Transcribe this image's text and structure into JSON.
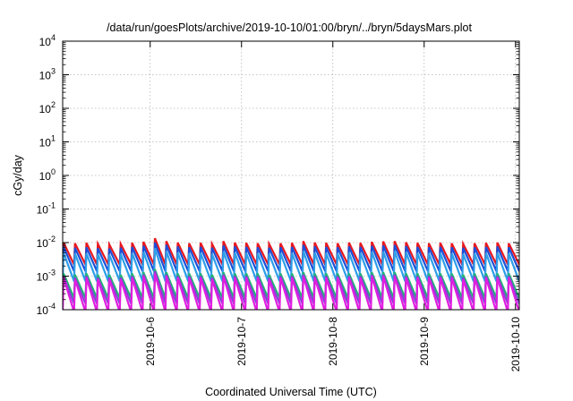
{
  "chart_data": {
    "type": "line",
    "title": "/data/run/goesPlots/archive/2019-10-10/01:00/bryn/../bryn/5daysMars.plot",
    "xlabel": "Coordinated Universal Time (UTC)",
    "ylabel": "cGy/day",
    "yscale": "log",
    "ylim": [
      0.0001,
      10000
    ],
    "xlim": [
      "2019-10-05 01:00",
      "2019-10-10 01:00"
    ],
    "grid": true,
    "x_ticks": [
      "2019-10-6",
      "2019-10-7",
      "2019-10-8",
      "2019-10-9",
      "2019-10-10"
    ],
    "y_ticks": [
      {
        "base": "10",
        "exp": "-4"
      },
      {
        "base": "10",
        "exp": "-3"
      },
      {
        "base": "10",
        "exp": "-2"
      },
      {
        "base": "10",
        "exp": "-1"
      },
      {
        "base": "10",
        "exp": "0"
      },
      {
        "base": "10",
        "exp": "1"
      },
      {
        "base": "10",
        "exp": "2"
      },
      {
        "base": "10",
        "exp": "3"
      },
      {
        "base": "10",
        "exp": "4"
      }
    ],
    "sawtooth_period_hours": 3,
    "series": [
      {
        "color": "#e8191f",
        "peak": [
          0.01,
          0.0095,
          0.0098,
          0.0092,
          0.0088,
          0.0092,
          0.0098,
          0.0105,
          0.0135,
          0.011,
          0.01,
          0.0095,
          0.0098,
          0.0092,
          0.011,
          0.01,
          0.0098,
          0.0095,
          0.0092,
          0.0095,
          0.0098,
          0.011,
          0.01,
          0.0098,
          0.0095,
          0.01,
          0.0098,
          0.0105,
          0.0108,
          0.011,
          0.0102,
          0.0098,
          0.0095,
          0.0098,
          0.0095,
          0.0092,
          0.0095,
          0.0098,
          0.01,
          0.0095
        ],
        "trough": 0.0022
      },
      {
        "color": "#1c4fd8",
        "peak": [
          0.0075,
          0.007,
          0.0072,
          0.0068,
          0.0066,
          0.007,
          0.0074,
          0.008,
          0.01,
          0.0085,
          0.0076,
          0.0072,
          0.0074,
          0.007,
          0.0082,
          0.0076,
          0.0074,
          0.0072,
          0.007,
          0.0072,
          0.0074,
          0.0084,
          0.0076,
          0.0074,
          0.0072,
          0.0076,
          0.0074,
          0.008,
          0.0082,
          0.0084,
          0.0078,
          0.0074,
          0.0072,
          0.0074,
          0.0072,
          0.007,
          0.0072,
          0.0074,
          0.0076,
          0.0072
        ],
        "trough": 0.0014
      },
      {
        "color": "#2e9ee8",
        "peak": [
          0.005,
          0.0047,
          0.0048,
          0.0046,
          0.0044,
          0.0046,
          0.0049,
          0.0053,
          0.0068,
          0.0056,
          0.005,
          0.0048,
          0.0049,
          0.0046,
          0.0055,
          0.005,
          0.0049,
          0.0048,
          0.0046,
          0.0048,
          0.0049,
          0.0056,
          0.005,
          0.0049,
          0.0048,
          0.005,
          0.0049,
          0.0053,
          0.0054,
          0.0056,
          0.0052,
          0.0049,
          0.0048,
          0.0049,
          0.0048,
          0.0046,
          0.0048,
          0.0049,
          0.005,
          0.0048
        ],
        "trough": 0.0007
      },
      {
        "color": "#22b573",
        "peak": [
          0.0012,
          0.0011,
          0.0012,
          0.0011,
          0.0011,
          0.0011,
          0.0012,
          0.0013,
          0.0016,
          0.0013,
          0.0012,
          0.0012,
          0.0012,
          0.0011,
          0.0013,
          0.0012,
          0.0012,
          0.0012,
          0.0011,
          0.0012,
          0.0012,
          0.0013,
          0.0012,
          0.0012,
          0.0012,
          0.0012,
          0.0012,
          0.0013,
          0.0013,
          0.0013,
          0.0012,
          0.0012,
          0.0012,
          0.0012,
          0.0012,
          0.0011,
          0.0012,
          0.0012,
          0.0012,
          0.0012
        ],
        "trough": 0.00022
      },
      {
        "color": "#8b3fd9",
        "peak": [
          0.001,
          0.0009,
          0.001,
          0.0009,
          0.0009,
          0.0009,
          0.001,
          0.0011,
          0.0014,
          0.0011,
          0.001,
          0.001,
          0.001,
          0.0009,
          0.0011,
          0.001,
          0.001,
          0.001,
          0.0009,
          0.001,
          0.001,
          0.0011,
          0.001,
          0.001,
          0.001,
          0.001,
          0.001,
          0.0011,
          0.0011,
          0.0011,
          0.001,
          0.001,
          0.001,
          0.001,
          0.001,
          0.0009,
          0.001,
          0.001,
          0.001,
          0.001
        ],
        "trough": 0.00015
      },
      {
        "color": "#e01ee0",
        "peak": [
          0.0009,
          0.0008,
          0.0009,
          0.0008,
          0.0008,
          0.0008,
          0.0009,
          0.001,
          0.0012,
          0.001,
          0.0009,
          0.0009,
          0.0009,
          0.0008,
          0.001,
          0.0009,
          0.0009,
          0.0009,
          0.0008,
          0.0009,
          0.0009,
          0.001,
          0.0009,
          0.0009,
          0.0009,
          0.0009,
          0.0009,
          0.001,
          0.001,
          0.001,
          0.0009,
          0.0009,
          0.0009,
          0.0009,
          0.0009,
          0.0008,
          0.0009,
          0.0009,
          0.0009,
          0.0009
        ],
        "trough": 8.5e-05
      }
    ]
  }
}
